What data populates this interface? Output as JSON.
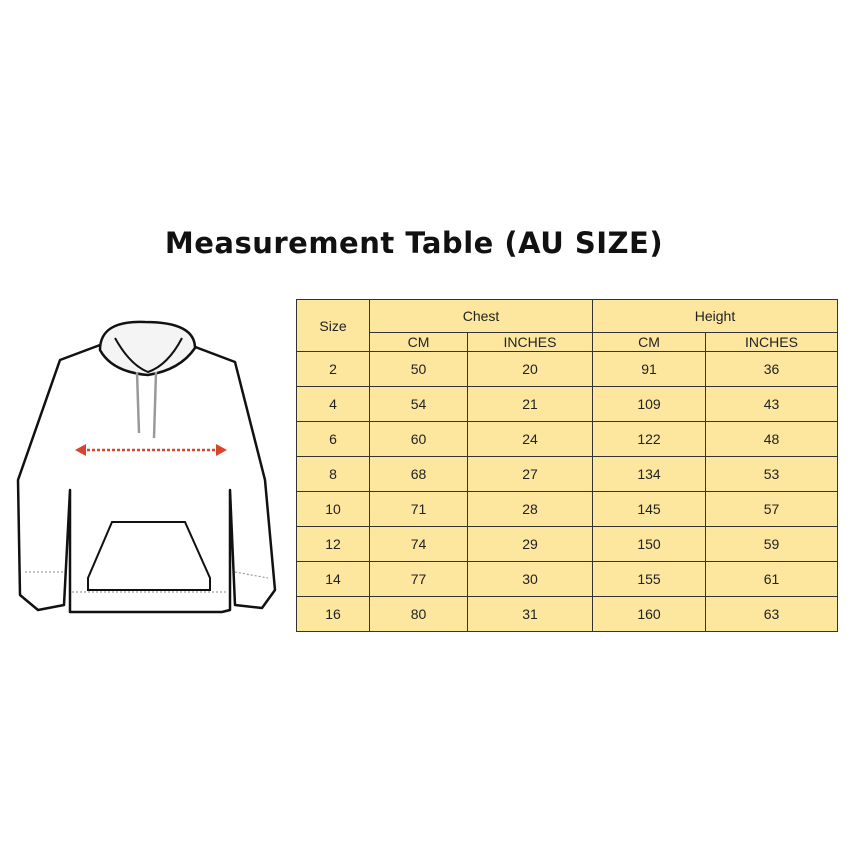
{
  "title": "Measurement Table (AU SIZE)",
  "table": {
    "size_header": "Size",
    "groups": [
      "Chest",
      "Height"
    ],
    "units": [
      "CM",
      "INCHES",
      "CM",
      "INCHES"
    ],
    "rows": [
      [
        "2",
        "50",
        "20",
        "91",
        "36"
      ],
      [
        "4",
        "54",
        "21",
        "109",
        "43"
      ],
      [
        "6",
        "60",
        "24",
        "122",
        "48"
      ],
      [
        "8",
        "68",
        "27",
        "134",
        "53"
      ],
      [
        "10",
        "71",
        "28",
        "145",
        "57"
      ],
      [
        "12",
        "74",
        "29",
        "150",
        "59"
      ],
      [
        "14",
        "77",
        "30",
        "155",
        "61"
      ],
      [
        "16",
        "80",
        "31",
        "160",
        "63"
      ]
    ]
  },
  "colors": {
    "table_fill": "#fde69e",
    "arrow": "#d9452c"
  }
}
